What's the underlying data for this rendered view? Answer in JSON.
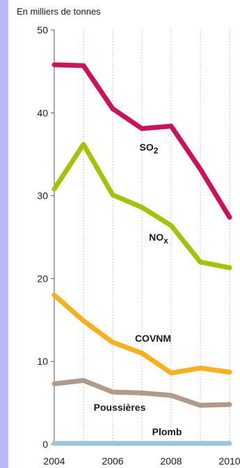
{
  "chart_data": {
    "type": "line",
    "ylabel": "En milliers de tonnes",
    "x": [
      2004,
      2005,
      2006,
      2007,
      2008,
      2009,
      2010
    ],
    "xticks": [
      "2004",
      "2006",
      "2008",
      "2010"
    ],
    "yticks": [
      "0",
      "10",
      "20",
      "30",
      "40",
      "50"
    ],
    "ylim": [
      0,
      50
    ],
    "grid": "vertical",
    "series": [
      {
        "name": "SO",
        "subscript": "2",
        "color": "#c8145a",
        "values": [
          45.8,
          45.7,
          40.5,
          38.1,
          38.4,
          33.2,
          27.4
        ]
      },
      {
        "name": "NO",
        "subscript": "x",
        "color": "#a8bf0e",
        "values": [
          30.8,
          36.2,
          30.1,
          28.6,
          26.4,
          22.0,
          21.3
        ]
      },
      {
        "name": "COVNM",
        "subscript": "",
        "color": "#f7b021",
        "values": [
          18.0,
          14.9,
          12.3,
          11.0,
          8.6,
          9.2,
          8.7
        ]
      },
      {
        "name": "Poussières",
        "subscript": "",
        "color": "#b09a8a",
        "values": [
          7.3,
          7.7,
          6.3,
          6.2,
          5.9,
          4.7,
          4.8
        ]
      },
      {
        "name": "Plomb",
        "subscript": "",
        "color": "#9dc7d8",
        "values": [
          0.1,
          0.1,
          0.1,
          0.1,
          0.1,
          0.1,
          0.1
        ]
      }
    ]
  }
}
